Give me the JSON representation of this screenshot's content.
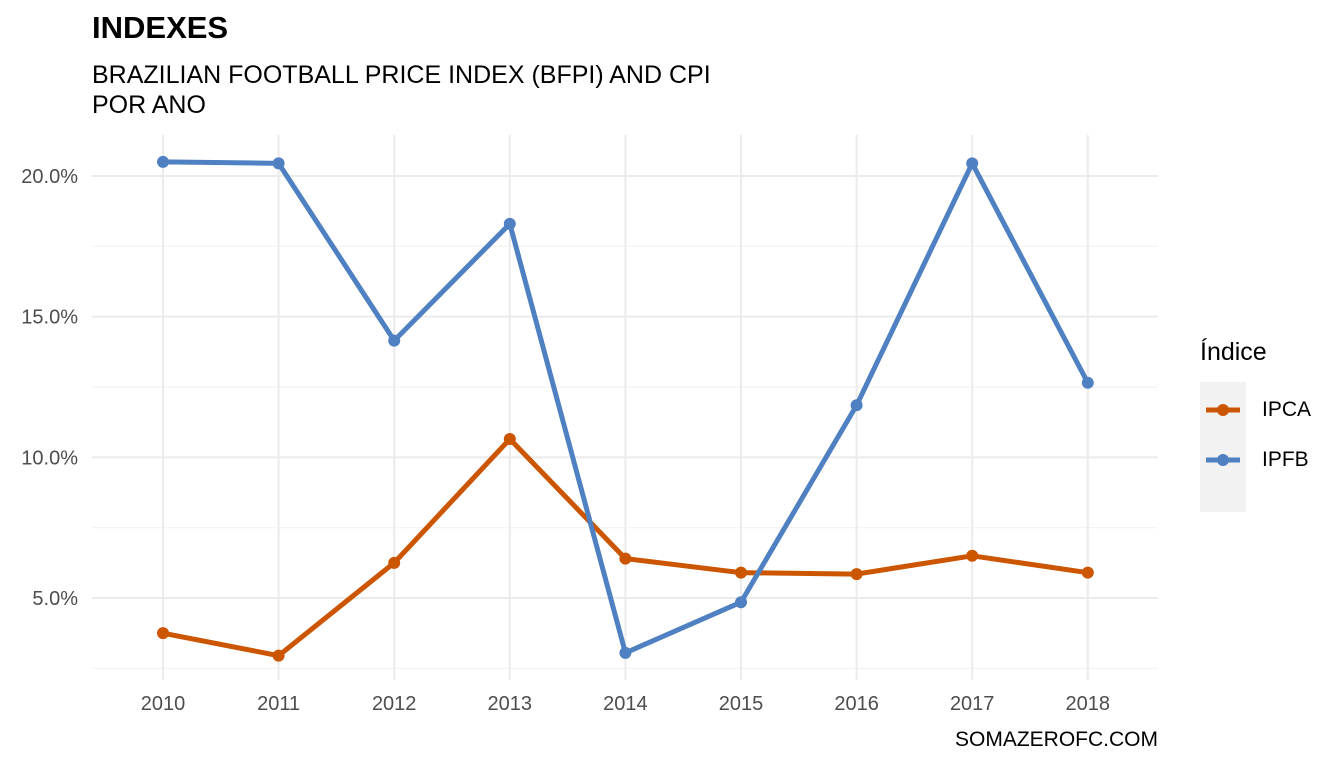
{
  "title": "INDEXES",
  "subtitle": "BRAZILIAN FOOTBALL PRICE INDEX (BFPI) AND CPI\nPOR ANO",
  "caption": "SOMAZEROFC.COM",
  "legend": {
    "title": "Índice"
  },
  "chart_data": {
    "type": "line",
    "title": "INDEXES",
    "subtitle": "BRAZILIAN FOOTBALL PRICE INDEX (BFPI) AND CPI POR ANO",
    "xlabel": "",
    "ylabel": "",
    "x": [
      "2010",
      "2011",
      "2012",
      "2013",
      "2014",
      "2015",
      "2016",
      "2017",
      "2018"
    ],
    "ylim": [
      2.5,
      21.5
    ],
    "y_ticks": [
      5,
      10,
      15,
      20
    ],
    "y_tick_labels": [
      "5.0%",
      "10.0%",
      "15.0%",
      "20.0%"
    ],
    "grid": true,
    "legend_position": "right",
    "series": [
      {
        "name": "IPCA",
        "color": "#CC5500",
        "values": [
          3.75,
          2.95,
          6.25,
          10.65,
          6.4,
          5.9,
          5.85,
          6.5,
          5.9
        ]
      },
      {
        "name": "IPFB",
        "color": "#4F81C2",
        "values": [
          20.5,
          20.45,
          14.15,
          18.3,
          3.05,
          4.85,
          11.85,
          20.45,
          12.65
        ]
      }
    ]
  }
}
